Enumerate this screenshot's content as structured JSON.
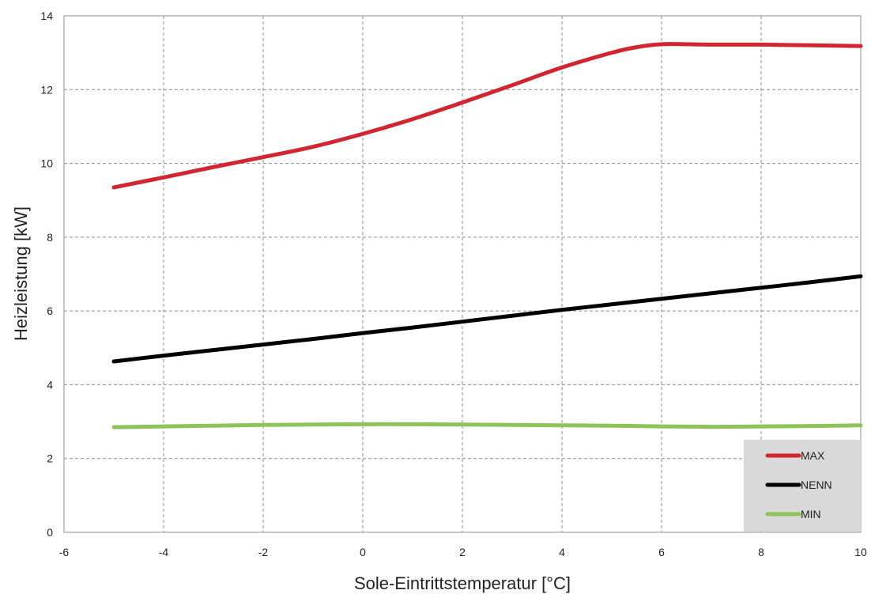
{
  "chart_data": {
    "type": "line",
    "title": "",
    "xlabel": "Sole-Eintrittstemperatur [°C]",
    "ylabel": "Heizleistung [kW]",
    "xlim": [
      -6,
      10
    ],
    "ylim": [
      0,
      14
    ],
    "xticks": [
      -6,
      -4,
      -2,
      0,
      2,
      4,
      6,
      8,
      10
    ],
    "yticks": [
      0,
      2,
      4,
      6,
      8,
      10,
      12,
      14
    ],
    "xtick_labels": [
      "-6",
      "-4",
      "-2",
      "0",
      "2",
      "4",
      "6",
      "8",
      "10"
    ],
    "ytick_labels": [
      "0",
      "2",
      "4",
      "6",
      "8",
      "10",
      "12",
      "14"
    ],
    "grid": true,
    "legend_position": "bottom-right",
    "series": [
      {
        "name": "MAX",
        "color": "#d1262f",
        "x": [
          -5,
          -4,
          -3,
          -2,
          -1,
          0,
          1,
          2,
          3,
          4,
          5,
          5.5,
          6,
          6.5,
          7,
          8,
          9,
          10
        ],
        "y": [
          9.35,
          9.62,
          9.9,
          10.17,
          10.45,
          10.8,
          11.2,
          11.65,
          12.12,
          12.6,
          13.0,
          13.15,
          13.23,
          13.23,
          13.22,
          13.22,
          13.2,
          13.18
        ]
      },
      {
        "name": "NENN",
        "color": "#000000",
        "x": [
          -5,
          -4,
          -3,
          -2,
          -1,
          0,
          1,
          2,
          3,
          4,
          5,
          6,
          7,
          8,
          9,
          10
        ],
        "y": [
          4.63,
          4.79,
          4.94,
          5.09,
          5.24,
          5.4,
          5.55,
          5.71,
          5.87,
          6.03,
          6.18,
          6.33,
          6.48,
          6.63,
          6.78,
          6.94
        ]
      },
      {
        "name": "MIN",
        "color": "#8dc45a",
        "x": [
          -5,
          -4,
          -3,
          -2,
          -1,
          0,
          1,
          2,
          3,
          4,
          5,
          6,
          7,
          8,
          9,
          10
        ],
        "y": [
          2.85,
          2.87,
          2.89,
          2.91,
          2.92,
          2.93,
          2.93,
          2.92,
          2.91,
          2.9,
          2.89,
          2.87,
          2.86,
          2.87,
          2.88,
          2.9
        ]
      }
    ],
    "legend_background": "#d9d9d9"
  }
}
